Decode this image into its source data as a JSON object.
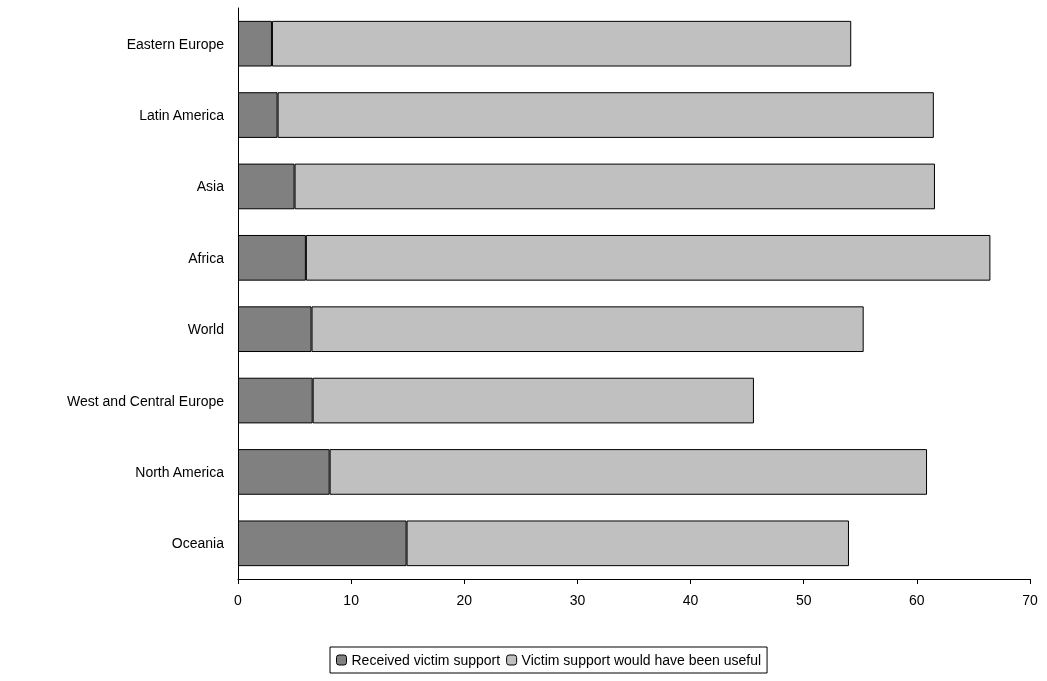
{
  "chart_data": {
    "type": "bar",
    "orientation": "horizontal",
    "stacked": true,
    "categories": [
      "Eastern Europe",
      "Latin America",
      "Asia",
      "Africa",
      "World",
      "West and Central Europe",
      "North America",
      "Oceania"
    ],
    "series": [
      {
        "name": "Received victim support",
        "color": "#808080",
        "values": [
          3.0,
          3.5,
          5.0,
          6.0,
          6.5,
          6.6,
          8.1,
          14.9
        ]
      },
      {
        "name": "Victim support would have been useful",
        "color": "#c0c0c0",
        "values": [
          51.2,
          58.0,
          56.6,
          60.5,
          48.8,
          39.0,
          52.8,
          39.1
        ]
      }
    ],
    "xlim": [
      0,
      70
    ],
    "xticks": [
      0,
      10,
      20,
      30,
      40,
      50,
      60,
      70
    ],
    "grid": false,
    "legend": "bottom"
  }
}
